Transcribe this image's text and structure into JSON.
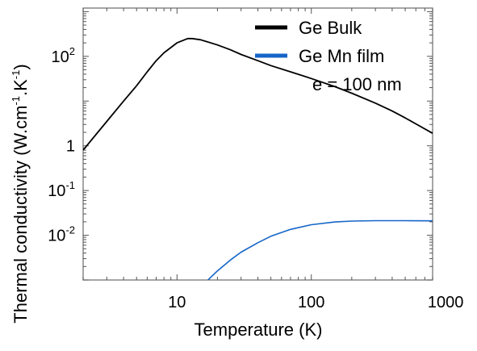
{
  "chart_data": {
    "type": "line",
    "xlabel": "Temperature (K)",
    "ylabel": "Thermal conductivity (W.cm-1.K-1)",
    "ylabel_parts": {
      "main": "Thermal conductivity (W.cm",
      "exp1": "-1",
      "mid": ".K",
      "exp2": "-1",
      "end": ")"
    },
    "x_scale": "log",
    "y_scale": "log",
    "xlim": [
      2,
      800
    ],
    "ylim": [
      0.001,
      1200
    ],
    "grid": false,
    "legend_position": "top-right",
    "x_ticks": [
      {
        "value": 10,
        "label": "10"
      },
      {
        "value": 100,
        "label": "100"
      },
      {
        "value": 1000,
        "label": "1000"
      }
    ],
    "y_ticks": [
      {
        "value": 100,
        "base": "10",
        "exp": "2"
      },
      {
        "value": 1,
        "base": "1",
        "exp": ""
      },
      {
        "value": 0.1,
        "base": "10",
        "exp": "-1"
      },
      {
        "value": 0.01,
        "base": "10",
        "exp": "-2"
      }
    ],
    "annotation": "e = 100 nm",
    "series": [
      {
        "name": "Ge Bulk",
        "color": "#000000",
        "x": [
          2,
          3,
          4,
          5,
          6,
          7,
          8,
          10,
          12,
          13,
          15,
          20,
          25,
          30,
          40,
          50,
          70,
          100,
          150,
          200,
          300,
          400,
          500,
          600,
          800
        ],
        "y": [
          0.8,
          3.5,
          10,
          22,
          45,
          80,
          120,
          200,
          250,
          250,
          235,
          180,
          140,
          110,
          80,
          62,
          45,
          32,
          21,
          15,
          9,
          6,
          4.2,
          3.1,
          1.9
        ]
      },
      {
        "name": "Ge Mn film",
        "color": "#1565c8",
        "x": [
          17,
          20,
          25,
          30,
          40,
          50,
          70,
          100,
          150,
          200,
          300,
          500,
          800
        ],
        "y": [
          0.001,
          0.0016,
          0.0028,
          0.0042,
          0.0068,
          0.0095,
          0.0135,
          0.0172,
          0.0198,
          0.0207,
          0.0212,
          0.0212,
          0.021
        ]
      }
    ]
  }
}
